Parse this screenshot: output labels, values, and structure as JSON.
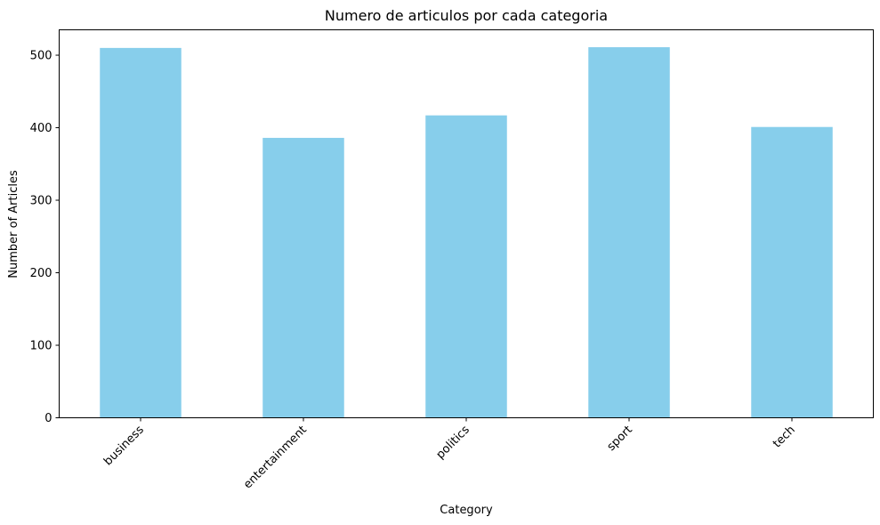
{
  "chart_data": {
    "type": "bar",
    "title": "Numero de articulos por cada categoria",
    "xlabel": "Category",
    "ylabel": "Number of Articles",
    "categories": [
      "business",
      "entertainment",
      "politics",
      "sport",
      "tech"
    ],
    "values": [
      510,
      386,
      417,
      511,
      401
    ],
    "ylim": [
      0,
      535
    ],
    "yticks": [
      0,
      100,
      200,
      300,
      400,
      500
    ],
    "ytick_labels": [
      "0",
      "100",
      "200",
      "300",
      "400",
      "500"
    ],
    "bar_color": "#87CEEB",
    "grid": false,
    "legend": "none"
  }
}
